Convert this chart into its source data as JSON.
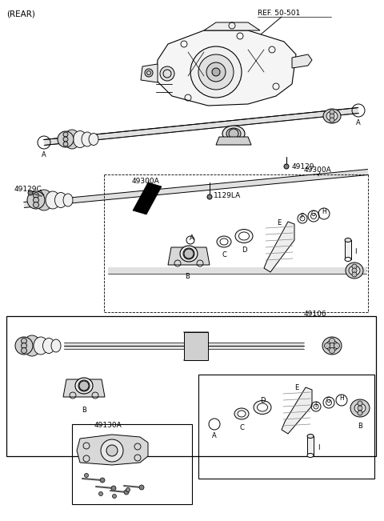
{
  "background_color": "#ffffff",
  "text_color": "#000000",
  "line_color": "#000000",
  "figsize": [
    4.8,
    6.51
  ],
  "dpi": 100,
  "labels": {
    "rear": "(REAR)",
    "ref": "REF. 50-501",
    "p49129": "49129",
    "p49129C": "49129C",
    "p49300A_1": "49300A",
    "p49300A_2": "49300A",
    "p1129LA": "1129LA",
    "p49106": "49106",
    "p49130A": "49130A",
    "A": "A",
    "B": "B",
    "C": "C",
    "D": "D",
    "E": "E",
    "F": "F",
    "G": "G",
    "H": "H",
    "I": "I"
  }
}
